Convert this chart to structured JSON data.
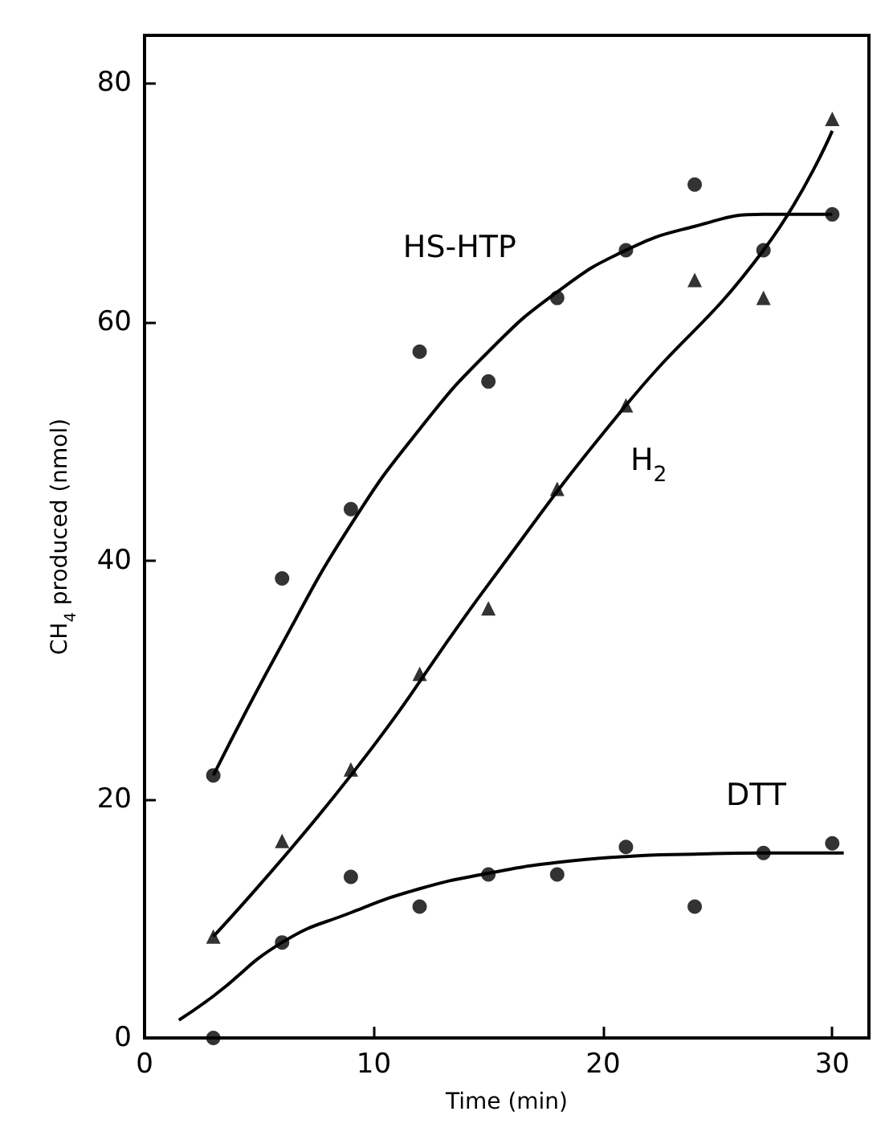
{
  "chart_data": {
    "type": "scatter",
    "xlabel": "Time (min)",
    "ylabel": "CH$_{4}$ produced (nmol)",
    "xlim": [
      0,
      31.6
    ],
    "xticks": [
      0,
      10,
      20,
      30
    ],
    "ylim": [
      0,
      84
    ],
    "yticks": [
      0,
      20,
      40,
      60,
      80
    ],
    "grid": false,
    "series": [
      {
        "marker": "circle",
        "color": "#000000",
        "x": [
          3,
          6,
          9,
          12,
          15,
          18,
          21,
          24,
          27,
          30
        ],
        "values": [
          22,
          38.5,
          44.3,
          57.5,
          55,
          62,
          66,
          71.5,
          66,
          69
        ]
      },
      {
        "marker": "circle",
        "color": "#000000",
        "x": [
          3
        ],
        "values": [
          0
        ]
      },
      {
        "marker": "triangle",
        "color": "#000000",
        "x": [
          3,
          6,
          9,
          12,
          15,
          18,
          21,
          24,
          27,
          30
        ],
        "values": [
          8.5,
          16.5,
          22.5,
          30.5,
          36,
          46,
          53,
          63.5,
          62,
          77
        ]
      },
      {
        "marker": "circle",
        "color": "#000000",
        "x": [
          6,
          9,
          12,
          15,
          18,
          21,
          24,
          27,
          30
        ],
        "values": [
          8,
          13.5,
          11,
          13.7,
          13.7,
          16,
          11,
          15.5,
          16.3
        ]
      },
      {
        "type": "line",
        "marker": "none",
        "color": "#000000",
        "x": [
          3,
          6,
          9,
          12,
          15,
          18,
          21,
          24,
          27,
          30
        ],
        "values": [
          22,
          33,
          43,
          51,
          57.5,
          62.5,
          66,
          68,
          69,
          69
        ]
      },
      {
        "type": "line",
        "marker": "none",
        "color": "#000000",
        "x": [
          3,
          9,
          15,
          21,
          27,
          30
        ],
        "values": [
          8.5,
          22,
          38,
          53,
          66,
          76
        ]
      },
      {
        "type": "line",
        "marker": "none",
        "color": "#000000",
        "x": [
          1.5,
          3,
          6,
          9,
          12,
          15,
          18,
          21,
          24,
          27,
          30.5
        ],
        "values": [
          1.5,
          3.5,
          8,
          10.5,
          12.5,
          13.8,
          14.7,
          15.2,
          15.4,
          15.5,
          15.5
        ]
      }
    ],
    "annotations": [
      "HS-HTP",
      "H$_{2}$",
      "DTT"
    ]
  }
}
